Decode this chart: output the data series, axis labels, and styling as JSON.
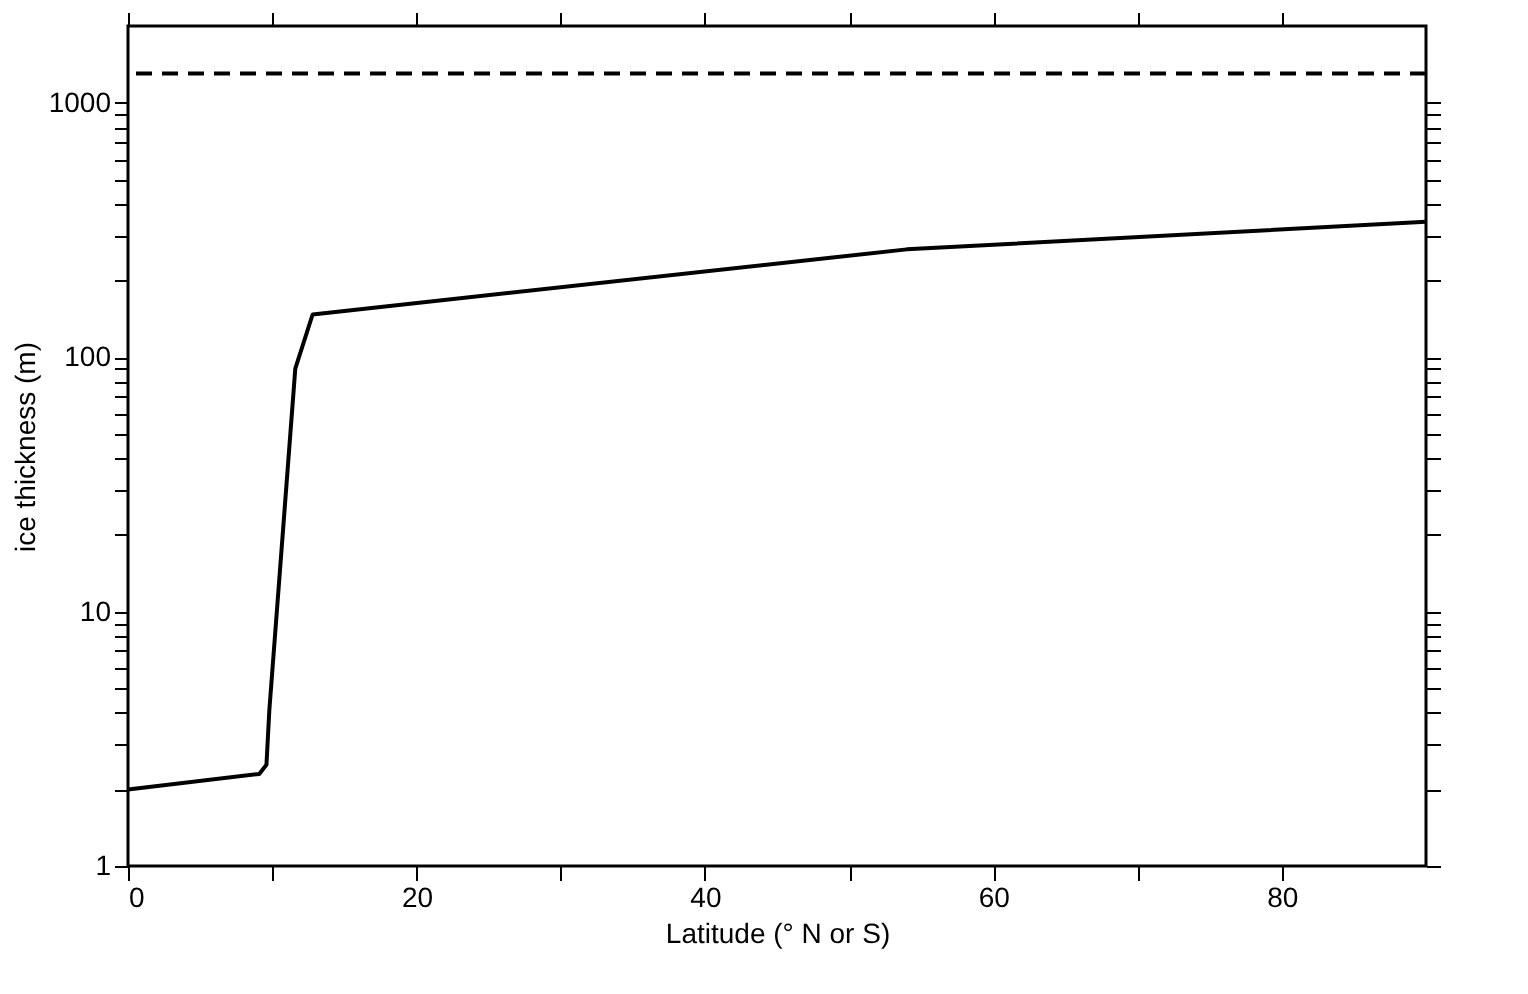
{
  "chart_data": {
    "type": "line",
    "xlabel": "Latitude (° N or S)",
    "ylabel": "ice thickness (m)",
    "log": "y",
    "xlim": [
      0,
      90
    ],
    "ylim": [
      1,
      2000
    ],
    "xticks": [
      0,
      {
        "value": 10,
        "label": null
      },
      20,
      {
        "value": 30,
        "label": null
      },
      40,
      {
        "value": 50,
        "label": null
      },
      60,
      {
        "value": 70,
        "label": null
      },
      80
    ],
    "yticks": [
      1,
      {
        "value": 2,
        "label": null
      },
      {
        "value": 3,
        "label": null
      },
      {
        "value": 4,
        "label": null
      },
      {
        "value": 5,
        "label": null
      },
      {
        "value": 6,
        "label": null
      },
      {
        "value": 7,
        "label": null
      },
      {
        "value": 8,
        "label": null
      },
      {
        "value": 9,
        "label": null
      },
      10,
      {
        "value": 20,
        "label": null
      },
      {
        "value": 30,
        "label": null
      },
      {
        "value": 40,
        "label": null
      },
      {
        "value": 50,
        "label": null
      },
      {
        "value": 60,
        "label": null
      },
      {
        "value": 70,
        "label": null
      },
      {
        "value": 80,
        "label": null
      },
      {
        "value": 90,
        "label": null
      },
      100,
      {
        "value": 200,
        "label": null
      },
      {
        "value": 300,
        "label": null
      },
      {
        "value": 400,
        "label": null
      },
      {
        "value": 500,
        "label": null
      },
      {
        "value": 600,
        "label": null
      },
      {
        "value": 700,
        "label": null
      },
      {
        "value": 800,
        "label": null
      },
      {
        "value": 900,
        "label": null
      },
      1000
    ],
    "grid": false,
    "line_style": "solid",
    "series": [
      {
        "color": "#000000",
        "x": [
          0,
          9.1,
          9.6,
          9.8,
          11.6,
          12.8,
          54,
          90
        ],
        "values": [
          2.0,
          2.3,
          2.5,
          4.1,
          90,
          147,
          265,
          340
        ]
      }
    ],
    "ref_lines": [
      {
        "axis": "y",
        "value": 1300,
        "line_style": "dashed",
        "color": "#000000"
      }
    ]
  }
}
